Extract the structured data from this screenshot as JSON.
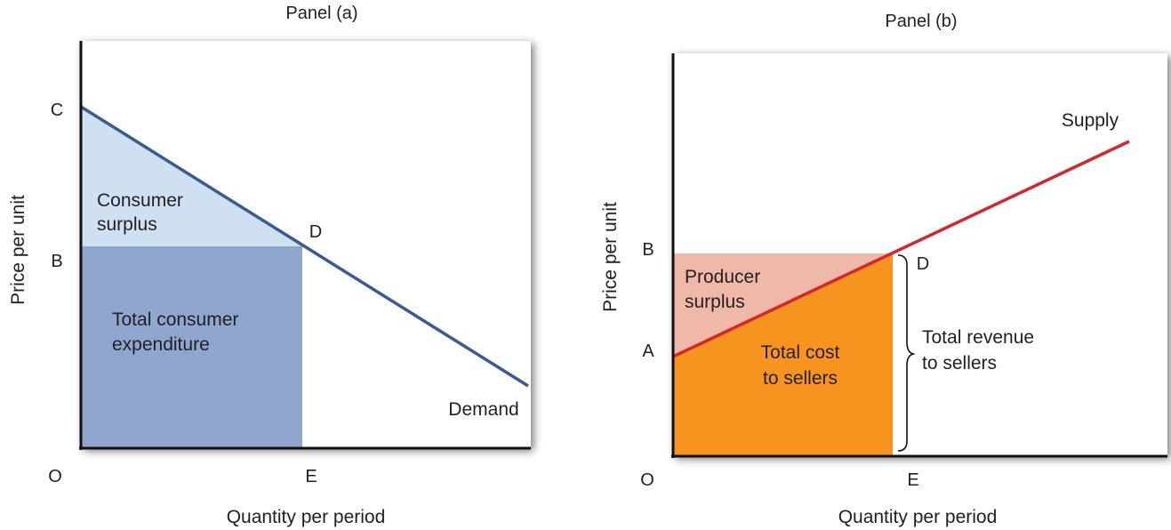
{
  "colors": {
    "demand_line": "#3a5a96",
    "consumer_surplus": "#cfe0f3",
    "consumer_expenditure": "#8fa7cf",
    "supply_line": "#d7262a",
    "producer_surplus": "#efb8a9",
    "total_cost": "#f6941f",
    "axis": "#111111"
  },
  "panel_a": {
    "title": "Panel (a)",
    "y_axis_label": "Price per unit",
    "x_axis_label": "Quantity per period",
    "origin_label": "O",
    "point_c": "C",
    "point_b": "B",
    "point_d": "D",
    "point_e": "E",
    "curve_label": "Demand",
    "surplus_label_1": "Consumer",
    "surplus_label_2": "surplus",
    "expenditure_label_1": "Total consumer",
    "expenditure_label_2": "expenditure"
  },
  "panel_b": {
    "title": "Panel (b)",
    "y_axis_label": "Price per unit",
    "x_axis_label": "Quantity per period",
    "origin_label": "O",
    "point_b": "B",
    "point_a": "A",
    "point_d": "D",
    "point_e": "E",
    "curve_label": "Supply",
    "surplus_label_1": "Producer",
    "surplus_label_2": "surplus",
    "cost_label_1": "Total cost",
    "cost_label_2": "to sellers",
    "revenue_label_1": "Total revenue",
    "revenue_label_2": "to sellers"
  }
}
